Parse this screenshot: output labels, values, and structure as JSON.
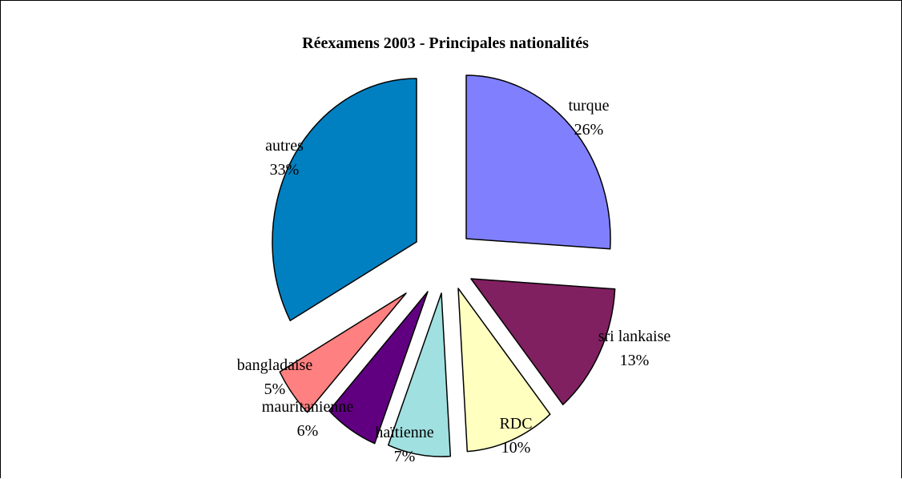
{
  "chart_data": {
    "type": "pie",
    "title": "Réexamens 2003 - Principales nationalités",
    "exploded": true,
    "slices": [
      {
        "label": "turque",
        "value": 26,
        "value_label": "26%",
        "color": "#8080FF"
      },
      {
        "label": "sri lankaise",
        "value": 13,
        "value_label": "13%",
        "color": "#802060"
      },
      {
        "label": "RDC",
        "value": 10,
        "value_label": "10%",
        "color": "#FFFFC0"
      },
      {
        "label": "haïtienne",
        "value": 7,
        "value_label": "7%",
        "color": "#A0E0E0"
      },
      {
        "label": "mauritanienne",
        "value": 6,
        "value_label": "6%",
        "color": "#600080"
      },
      {
        "label": "bangladaise",
        "value": 5,
        "value_label": "5%",
        "color": "#FF8080"
      },
      {
        "label": "autres",
        "value": 33,
        "value_label": "33%",
        "color": "#0080C0"
      }
    ]
  }
}
